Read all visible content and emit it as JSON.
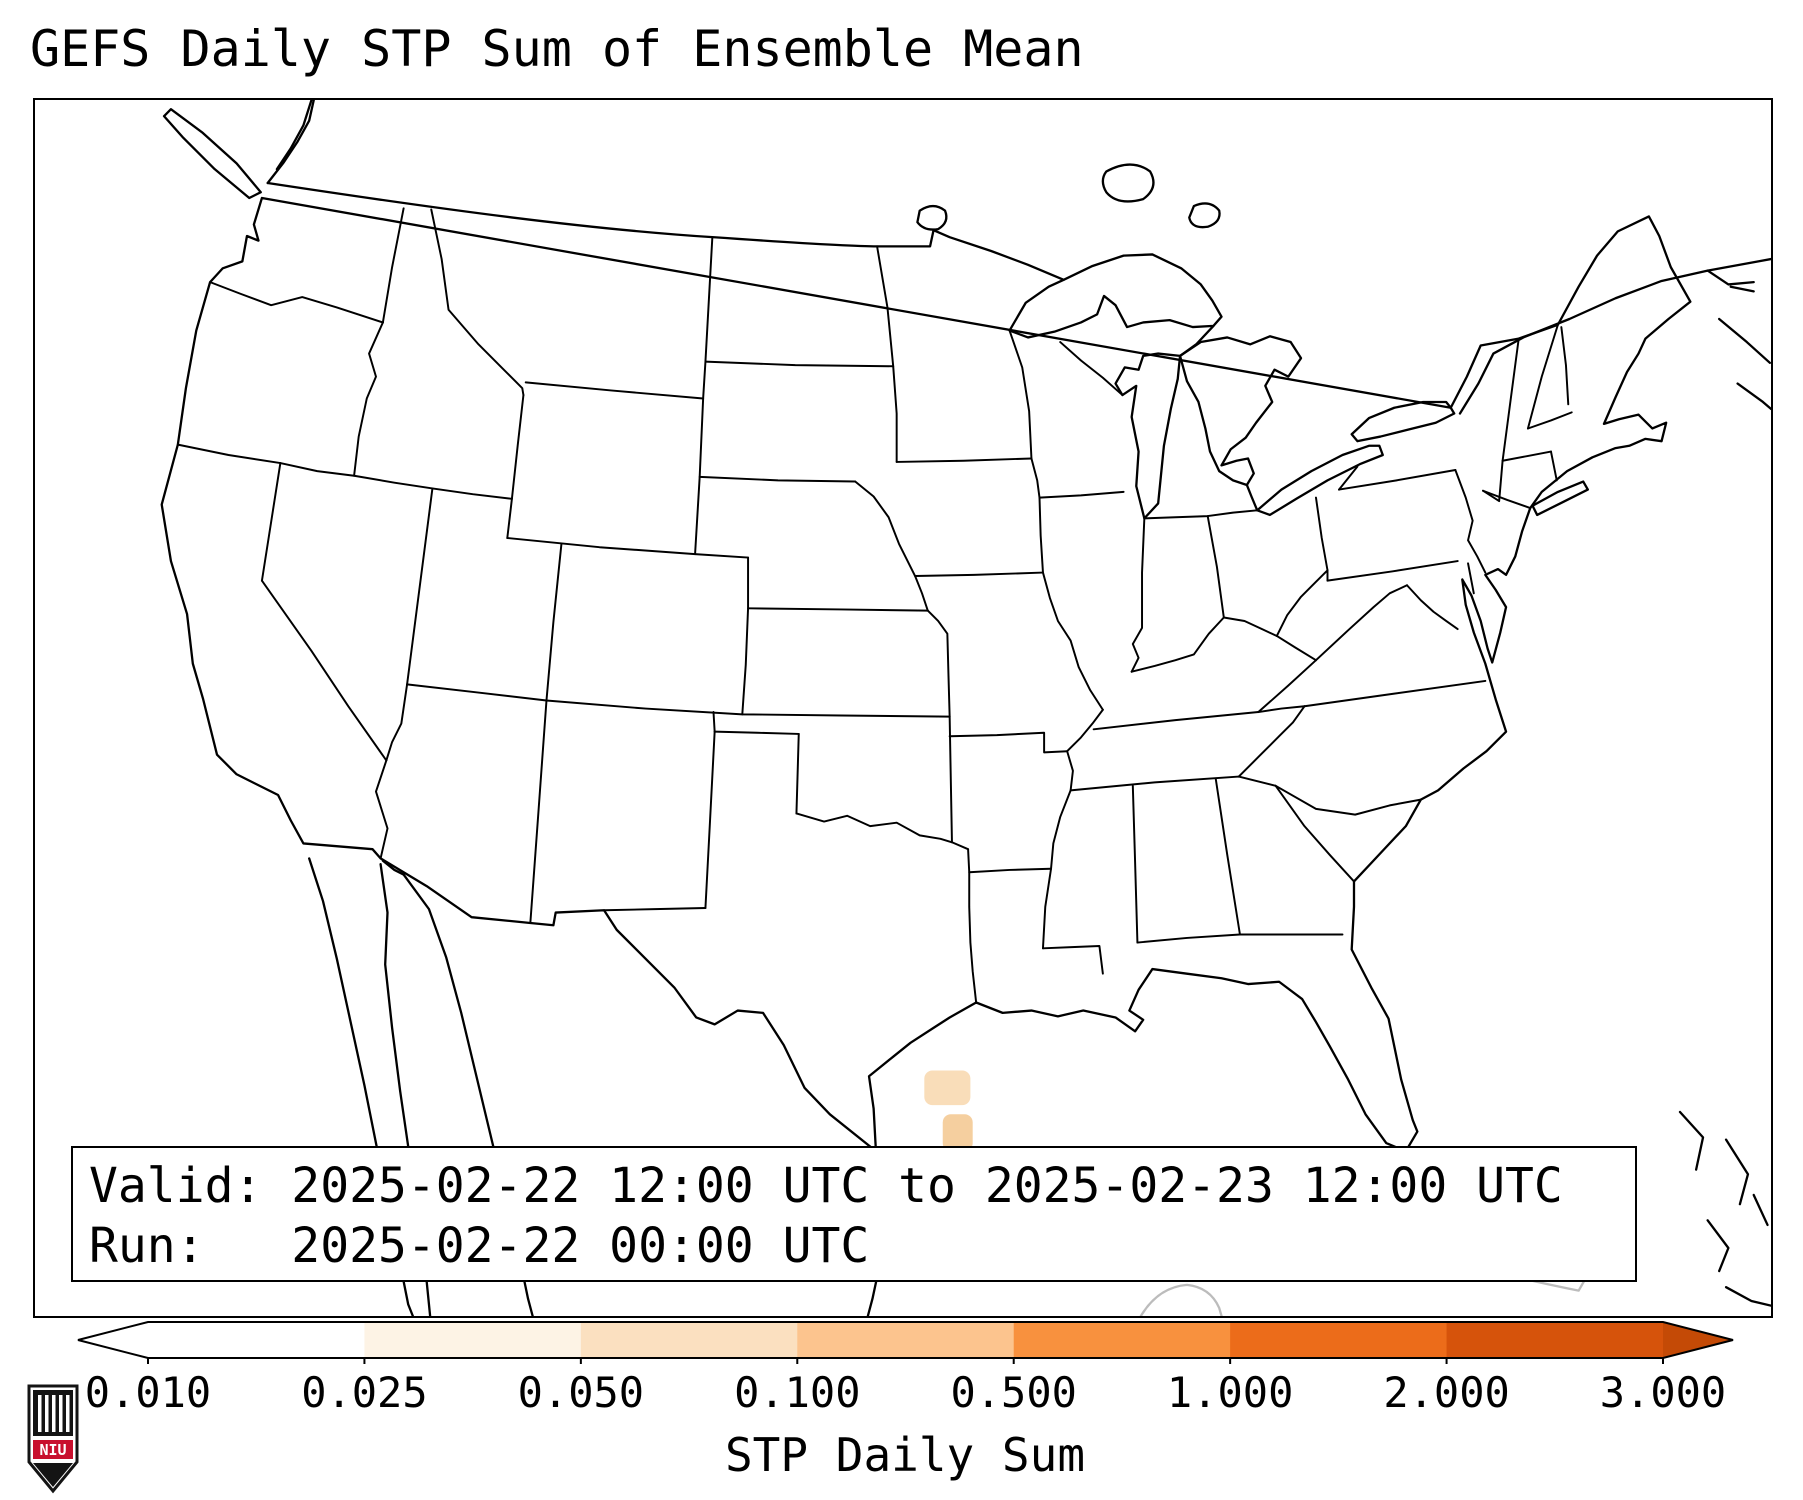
{
  "title": "GEFS Daily STP Sum of Ensemble Mean",
  "info_box": {
    "line1": "Valid: 2025-02-22 12:00 UTC to 2025-02-23 12:00 UTC",
    "line2": "Run:   2025-02-22 00:00 UTC"
  },
  "colorbar": {
    "label": "STP Daily Sum",
    "tick_labels": [
      "0.010",
      "0.025",
      "0.050",
      "0.100",
      "0.500",
      "1.000",
      "2.000",
      "3.000"
    ],
    "segment_colors": [
      "#ffffff",
      "#fdf3e5",
      "#fbe0c0",
      "#fcc48e",
      "#f8913e",
      "#ec6c1a",
      "#d6530b"
    ],
    "arrow_left_color": "#ffffff",
    "arrow_right_color": "#c44a06",
    "outline_color": "#000000"
  },
  "map": {
    "shaded_area_colors": [
      "#f9ddb9",
      "#f5cf9f",
      "#fdeedd"
    ]
  },
  "logo": {
    "text": "NIU",
    "red": "#c8102e",
    "black": "#141414"
  }
}
